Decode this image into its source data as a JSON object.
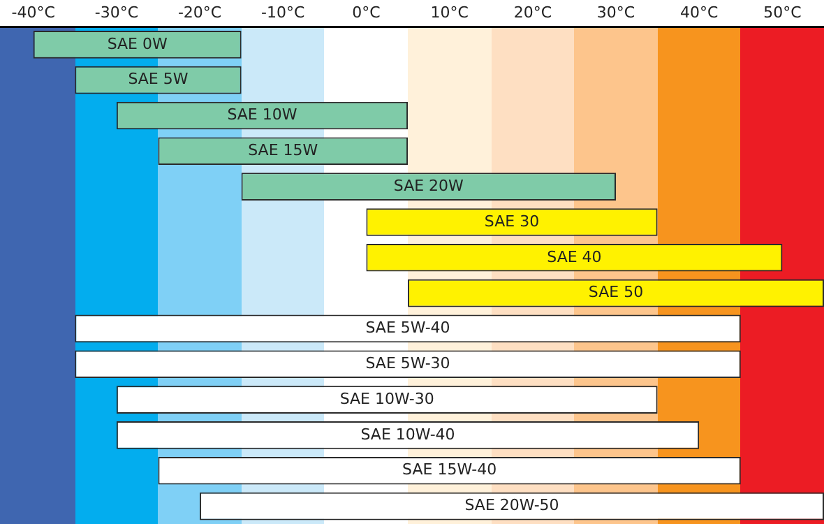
{
  "chart_data": {
    "type": "bar",
    "orientation": "horizontal",
    "tick_labels": "x",
    "categories": [
      "SAE 0W",
      "SAE 5W",
      "SAE 10W",
      "SAE 15W",
      "SAE 20W",
      "SAE 30",
      "SAE 40",
      "SAE 50",
      "SAE 5W-40",
      "SAE 5W-30",
      "SAE 10W-30",
      "SAE 10W-40",
      "SAE 15W-40",
      "SAE 20W-50"
    ],
    "base": [
      -40,
      -35,
      -30,
      -25,
      -15,
      0,
      0,
      5,
      -35,
      -35,
      -30,
      -30,
      -25,
      -20
    ],
    "values": [
      25,
      20,
      35,
      30,
      45,
      35,
      50,
      50,
      80,
      80,
      65,
      70,
      70,
      75
    ],
    "colors": [
      "#7fcba8",
      "#7fcba8",
      "#7fcba8",
      "#7fcba8",
      "#7fcba8",
      "#fff200",
      "#fff200",
      "#fff200",
      "#ffffff",
      "#ffffff",
      "#ffffff",
      "#ffffff",
      "#ffffff",
      "#ffffff"
    ],
    "xlim": [
      -44,
      55
    ],
    "xticks": [
      {
        "value": -40,
        "label": "-40°C"
      },
      {
        "value": -30,
        "label": "-30°C"
      },
      {
        "value": -20,
        "label": "-20°C"
      },
      {
        "value": -10,
        "label": "-10°C"
      },
      {
        "value": 0,
        "label": "0°C"
      },
      {
        "value": 10,
        "label": "10°C"
      },
      {
        "value": 20,
        "label": "20°C"
      },
      {
        "value": 30,
        "label": "30°C"
      },
      {
        "value": 40,
        "label": "40°C"
      },
      {
        "value": 50,
        "label": "50°C"
      }
    ],
    "bands": [
      {
        "axis": "x",
        "from": -45,
        "to": -35,
        "color": "#3f66b0"
      },
      {
        "axis": "x",
        "from": -35,
        "to": -25,
        "color": "#03adee"
      },
      {
        "axis": "x",
        "from": -25,
        "to": -15,
        "color": "#7fd0f6"
      },
      {
        "axis": "x",
        "from": -15,
        "to": -5,
        "color": "#cbe9f9"
      },
      {
        "axis": "x",
        "from": 5,
        "to": 15,
        "color": "#fff1da"
      },
      {
        "axis": "x",
        "from": 15,
        "to": 25,
        "color": "#fedfc2"
      },
      {
        "axis": "x",
        "from": 25,
        "to": 35,
        "color": "#fdc58c"
      },
      {
        "axis": "x",
        "from": 35,
        "to": 45,
        "color": "#f7941e"
      },
      {
        "axis": "x",
        "from": 45,
        "to": 55,
        "color": "#ec1c24"
      }
    ]
  }
}
